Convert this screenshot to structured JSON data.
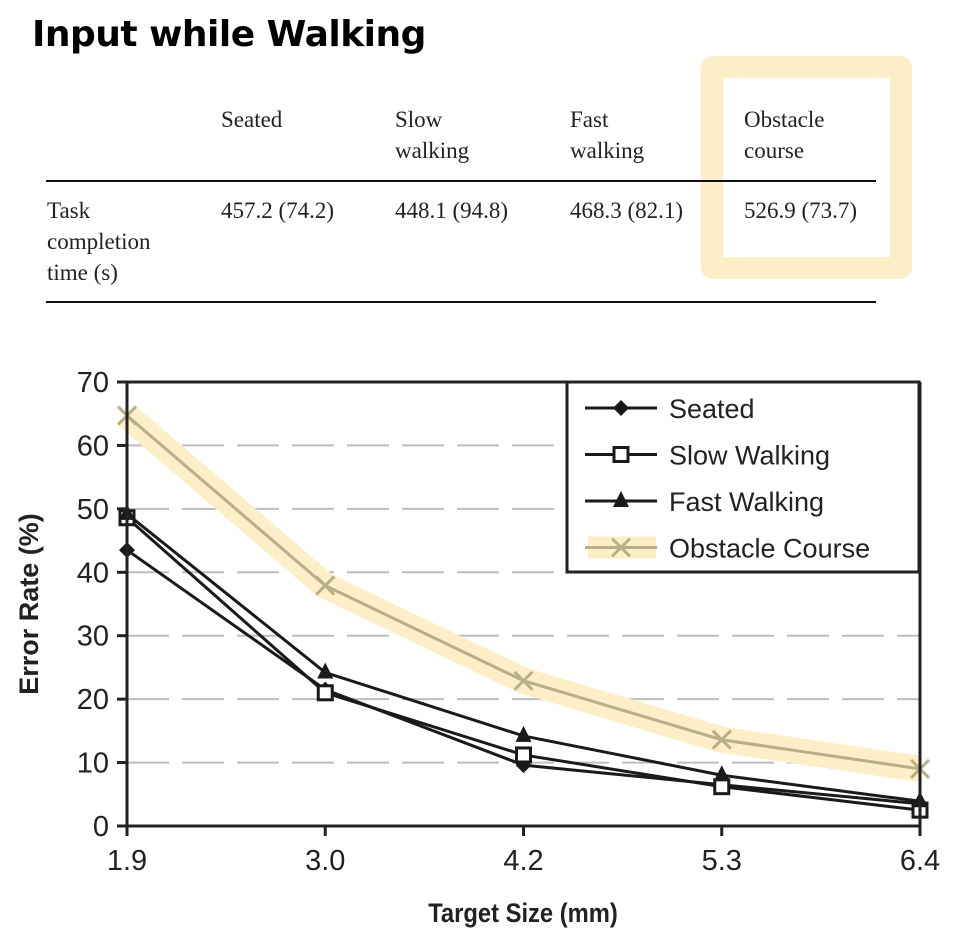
{
  "page_title": "Input while Walking",
  "highlight_color": "#FCEFC8",
  "table": {
    "columns": [
      "Seated",
      "Slow\nwalking",
      "Fast\nwalking",
      "Obstacle\ncourse"
    ],
    "rows": [
      {
        "label": "Task\ncompletion\ntime (s)",
        "values": [
          "457.2 (74.2)",
          "448.1 (94.8)",
          "468.3 (82.1)",
          "526.9 (73.7)"
        ]
      }
    ],
    "highlighted_column": "Obstacle course"
  },
  "chart_data": {
    "type": "line",
    "title": "",
    "xlabel": "Target Size (mm)",
    "ylabel": "Error Rate (%)",
    "categories": [
      "1.9",
      "3.0",
      "4.2",
      "5.3",
      "6.4"
    ],
    "ylim": [
      0,
      70
    ],
    "yticks": [
      "0",
      "10",
      "20",
      "30",
      "40",
      "50",
      "60",
      "70"
    ],
    "grid": "horizontal dashed",
    "legend_position": "top-right",
    "series": [
      {
        "name": "Seated",
        "marker": "diamond-filled",
        "color": "#1a1a1a",
        "values": [
          43.5,
          21.5,
          9.6,
          6.5,
          3.5
        ]
      },
      {
        "name": "Slow Walking",
        "marker": "square-open",
        "color": "#1a1a1a",
        "values": [
          48.6,
          21.0,
          11.2,
          6.2,
          2.5
        ]
      },
      {
        "name": "Fast Walking",
        "marker": "triangle-filled",
        "color": "#1a1a1a",
        "values": [
          49.2,
          24.2,
          14.2,
          8.0,
          3.9
        ]
      },
      {
        "name": "Obstacle Course",
        "marker": "x",
        "color": "#B8AE88",
        "highlight": "#FCEFC8",
        "values": [
          64.7,
          37.9,
          22.9,
          13.6,
          9.0
        ]
      }
    ]
  }
}
